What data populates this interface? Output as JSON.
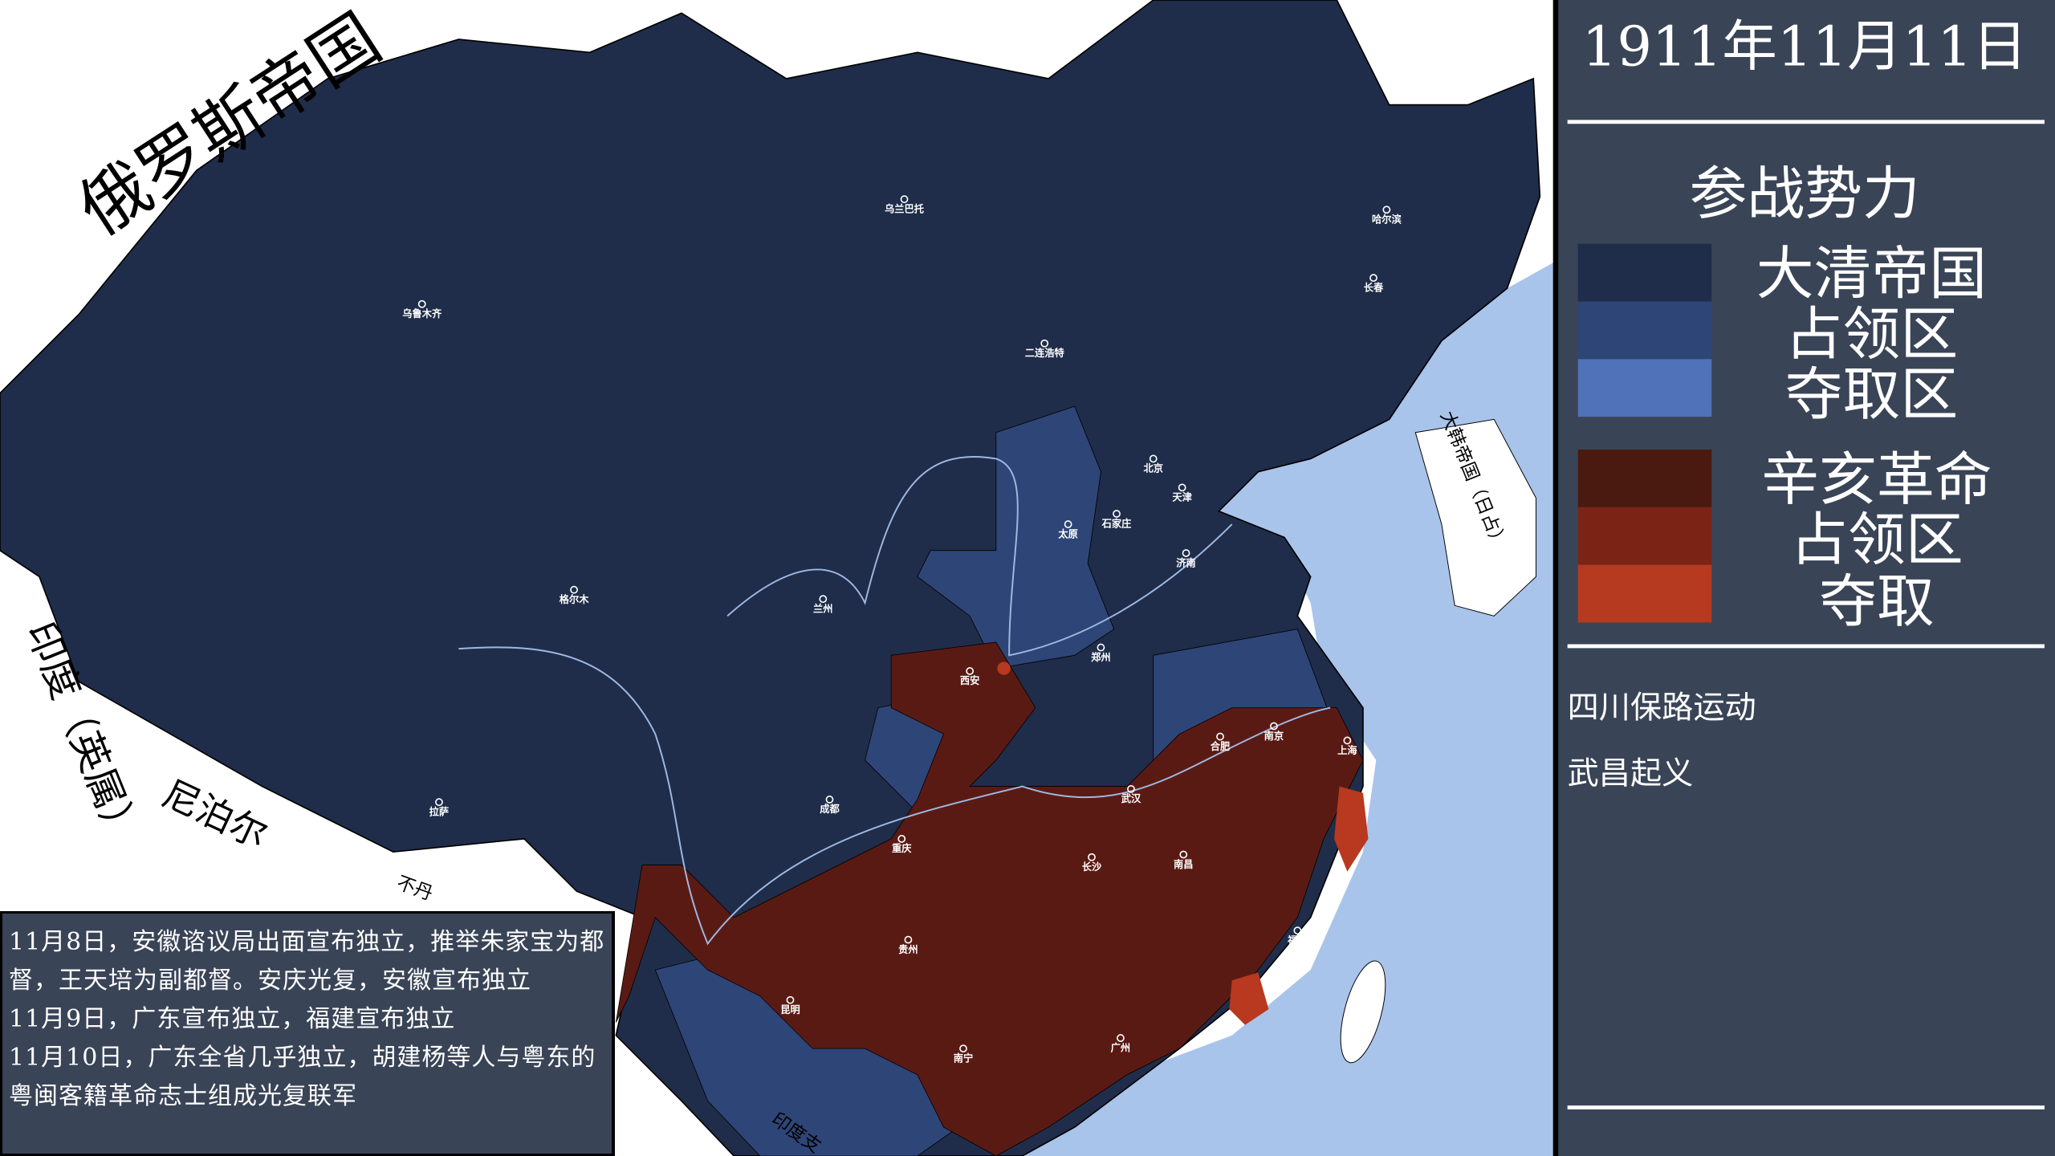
{
  "header": {
    "date": "1911年11月11日"
  },
  "legend": {
    "title": "参战势力",
    "groups": [
      {
        "items": [
          "大清帝国",
          "占领区",
          "夺取区"
        ]
      },
      {
        "items": [
          "辛亥革命",
          "占领区",
          "夺取"
        ]
      }
    ]
  },
  "events": [
    "四川保路运动",
    "武昌起义"
  ],
  "log": [
    "11月8日，安徽谘议局出面宣布独立，推举朱家宝为都督，王天培为副都督。安庆光复，安徽宣布独立",
    "11月9日，广东宣布独立，福建宣布独立",
    "11月10日，广东全省几乎独立，胡建杨等人与粤东的粤闽客籍革命志士组成光复联军"
  ],
  "map": {
    "countries": [
      "俄罗斯帝国",
      "印度（英属）",
      "尼泊尔",
      "不丹",
      "大韩帝国（日占）",
      "印度支"
    ],
    "cities": [
      "乌兰巴托",
      "乌鲁木齐",
      "哈尔滨",
      "长春",
      "二连浩特",
      "北京",
      "天津",
      "石家庄",
      "太原",
      "济南",
      "郑州",
      "西安",
      "兰州",
      "格尔木",
      "拉萨",
      "成都",
      "重庆",
      "武汉",
      "长沙",
      "南昌",
      "合肥",
      "南京",
      "上海",
      "福州",
      "贵州",
      "昆明",
      "南宁",
      "广州"
    ]
  }
}
